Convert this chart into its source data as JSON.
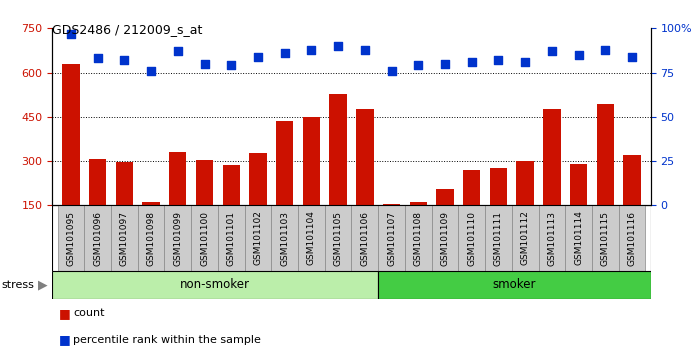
{
  "title": "GDS2486 / 212009_s_at",
  "samples": [
    "GSM101095",
    "GSM101096",
    "GSM101097",
    "GSM101098",
    "GSM101099",
    "GSM101100",
    "GSM101101",
    "GSM101102",
    "GSM101103",
    "GSM101104",
    "GSM101105",
    "GSM101106",
    "GSM101107",
    "GSM101108",
    "GSM101109",
    "GSM101110",
    "GSM101111",
    "GSM101112",
    "GSM101113",
    "GSM101114",
    "GSM101115",
    "GSM101116"
  ],
  "counts": [
    630,
    308,
    298,
    162,
    332,
    305,
    285,
    328,
    435,
    450,
    527,
    475,
    153,
    162,
    205,
    270,
    275,
    300,
    475,
    290,
    495,
    322
  ],
  "percentile_ranks": [
    97,
    83,
    82,
    76,
    87,
    80,
    79,
    84,
    86,
    88,
    90,
    88,
    76,
    79,
    80,
    81,
    82,
    81,
    87,
    85,
    88,
    84
  ],
  "non_smoker_count": 12,
  "smoker_count": 10,
  "ylim_left": [
    150,
    750
  ],
  "ylim_right": [
    0,
    100
  ],
  "yticks_left": [
    150,
    300,
    450,
    600,
    750
  ],
  "yticks_right": [
    0,
    25,
    50,
    75,
    100
  ],
  "bar_color": "#cc1100",
  "scatter_color": "#0033cc",
  "non_smoker_color": "#bbeeaa",
  "smoker_color": "#44cc44",
  "tick_bg_color": "#cccccc",
  "background_color": "#ffffff",
  "grid_color": "#000000",
  "legend_count_label": "count",
  "legend_pct_label": "percentile rank within the sample",
  "stress_label": "stress",
  "non_smoker_label": "non-smoker",
  "smoker_label": "smoker"
}
